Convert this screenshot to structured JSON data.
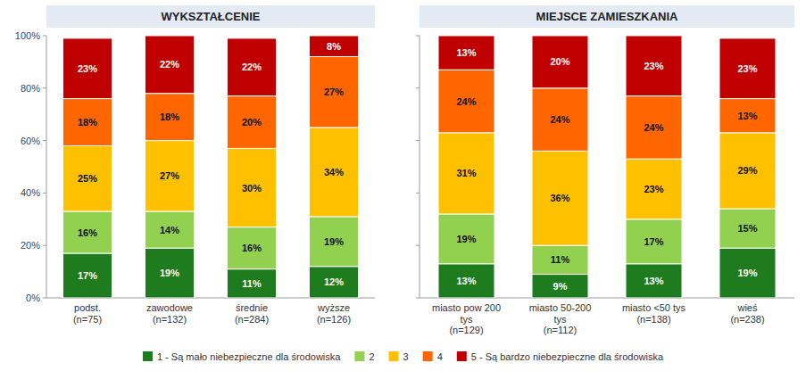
{
  "chart_data": [
    {
      "type": "bar",
      "stacked": true,
      "data_labels": true,
      "title": "WYKSZTAŁCENIE",
      "categories": [
        "podst.\n(n=75)",
        "zawodowe\n(n=132)",
        "średnie\n(n=284)",
        "wyższe\n(n=126)"
      ],
      "series": [
        {
          "name": "1 - Są mało niebezpieczne dla środowiska",
          "color": "#1e7b1e",
          "values": [
            17,
            19,
            11,
            12
          ],
          "value_labels": [
            "17%",
            "19%",
            "11%",
            "12%"
          ]
        },
        {
          "name": "2",
          "color": "#92d050",
          "values": [
            16,
            14,
            16,
            19
          ],
          "value_labels": [
            "16%",
            "14%",
            "16%",
            "19%"
          ]
        },
        {
          "name": "3",
          "color": "#ffc000",
          "values": [
            25,
            27,
            30,
            34
          ],
          "value_labels": [
            "25%",
            "27%",
            "30%",
            "34%"
          ]
        },
        {
          "name": "4",
          "color": "#ff6600",
          "values": [
            18,
            18,
            20,
            27
          ],
          "value_labels": [
            "18%",
            "18%",
            "20%",
            "27%"
          ]
        },
        {
          "name": "5 - Są bardzo niebezpieczne dla środowiska",
          "color": "#c00000",
          "values": [
            23,
            22,
            22,
            8
          ],
          "value_labels": [
            "23%",
            "22%",
            "22%",
            "8%"
          ]
        }
      ],
      "ylim": [
        0,
        100
      ],
      "yticks": [
        {
          "value": 0,
          "label": "0%"
        },
        {
          "value": 20,
          "label": "20%"
        },
        {
          "value": 40,
          "label": "40%"
        },
        {
          "value": 60,
          "label": "60%"
        },
        {
          "value": 80,
          "label": "80%"
        },
        {
          "value": 100,
          "label": "100%"
        }
      ]
    },
    {
      "type": "bar",
      "stacked": true,
      "data_labels": true,
      "tick_labels": "x",
      "title": "MIEJSCE ZAMIESZKANIA",
      "categories": [
        "miasto pow 200\ntys\n(n=129)",
        "miasto 50-200\ntys\n(n=112)",
        "miasto <50 tys\n(n=138)",
        "wieś\n(n=238)"
      ],
      "series": [
        {
          "name": "1 - Są mało niebezpieczne dla środowiska",
          "color": "#1e7b1e",
          "values": [
            13,
            9,
            13,
            19
          ],
          "value_labels": [
            "13%",
            "9%",
            "13%",
            "19%"
          ]
        },
        {
          "name": "2",
          "color": "#92d050",
          "values": [
            19,
            11,
            17,
            15
          ],
          "value_labels": [
            "19%",
            "11%",
            "17%",
            "15%"
          ]
        },
        {
          "name": "3",
          "color": "#ffc000",
          "values": [
            31,
            36,
            23,
            29
          ],
          "value_labels": [
            "31%",
            "36%",
            "23%",
            "29%"
          ]
        },
        {
          "name": "4",
          "color": "#ff6600",
          "values": [
            24,
            24,
            24,
            13
          ],
          "value_labels": [
            "24%",
            "24%",
            "24%",
            "13%"
          ]
        },
        {
          "name": "5 - Są bardzo niebezpieczne dla środowiska",
          "color": "#c00000",
          "values": [
            13,
            20,
            23,
            23
          ],
          "value_labels": [
            "13%",
            "20%",
            "23%",
            "23%"
          ]
        }
      ],
      "ylim": [
        0,
        100
      ],
      "yticks": [
        0,
        20,
        40,
        60,
        80,
        100
      ]
    }
  ]
}
